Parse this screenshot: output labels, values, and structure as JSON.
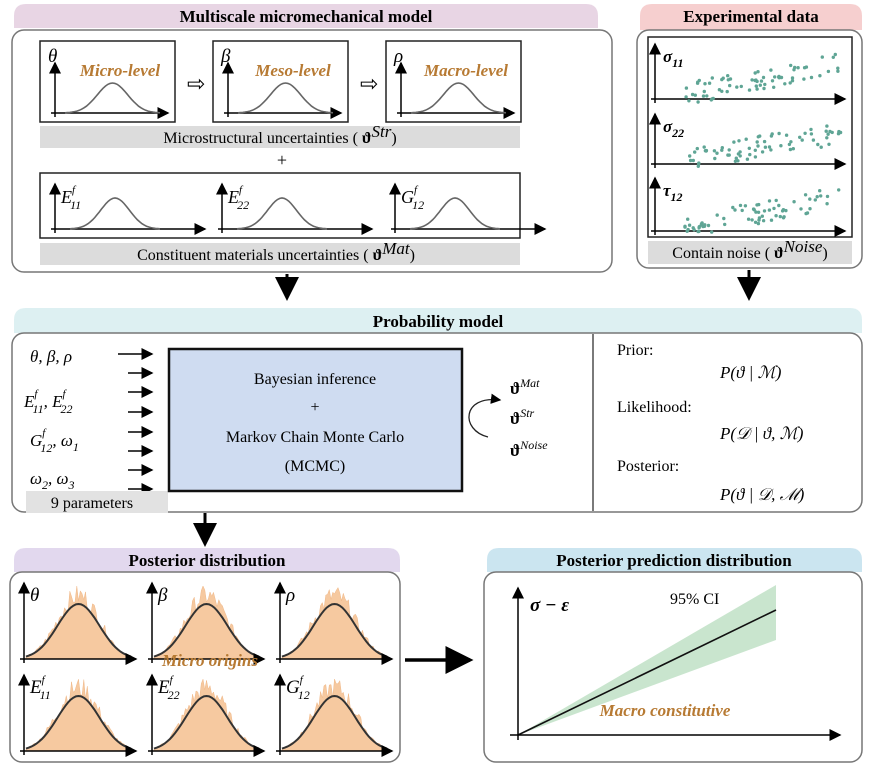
{
  "colors": {
    "accent_orange": "#b77a33",
    "multiscale_tab": "#e8d5e4",
    "experimental_tab": "#f6cfcf",
    "probability_tab": "#ddf0f2",
    "posterior_tab": "#e2d8ee",
    "prediction_tab": "#cbe5f0",
    "bayes_box": "#cfdcf1",
    "scatter": "#5fa595",
    "ci_band": "#bfe0c6",
    "posterior_fill": "#f6c9a0"
  },
  "multiscale": {
    "title": "Multiscale micromechanical model",
    "levels": [
      {
        "symbol": "θ",
        "label": "Micro-level"
      },
      {
        "symbol": "β",
        "label": "Meso-level"
      },
      {
        "symbol": "ρ",
        "label": "Macro-level"
      }
    ],
    "str_label": "Microstructural uncertainties (",
    "str_sym": "ϑ",
    "str_sup": "Str",
    "close": ")",
    "plus": "+",
    "materials": [
      {
        "base": "E",
        "sub": "11",
        "sup": "f"
      },
      {
        "base": "E",
        "sub": "22",
        "sup": "f"
      },
      {
        "base": "G",
        "sub": "12",
        "sup": "f"
      }
    ],
    "mat_label": "Constituent materials uncertainties (",
    "mat_sym": "ϑ",
    "mat_sup": "Mat"
  },
  "experimental": {
    "title": "Experimental data",
    "plots": [
      {
        "base": "σ",
        "sub": "11"
      },
      {
        "base": "σ",
        "sub": "22"
      },
      {
        "base": "τ",
        "sub": "12"
      }
    ],
    "noise_label": "Contain noise (",
    "noise_sym": "ϑ",
    "noise_sup": "Noise",
    "close": ")"
  },
  "probability": {
    "title": "Probability model",
    "inputs": {
      "l1": "θ, β, ρ",
      "l2a": "E",
      "l2a_sub": "11",
      "l2a_sup": "f",
      "l2b": ", E",
      "l2b_sub": "22",
      "l2b_sup": "f",
      "l3a": "G",
      "l3a_sub": "12",
      "l3a_sup": "f",
      "l3b": ", ω",
      "l3b_sub": "1",
      "l4a": "ω",
      "l4a_sub": "2",
      "l4b": ", ω",
      "l4b_sub": "3"
    },
    "param_count": "9 parameters",
    "bayes_line1": "Bayesian inference",
    "bayes_plus": "+",
    "bayes_line2": "Markov Chain Monte Carlo",
    "bayes_line3": "(MCMC)",
    "outputs": [
      {
        "sym": "ϑ",
        "sup": "Mat"
      },
      {
        "sym": "ϑ",
        "sup": "Str"
      },
      {
        "sym": "ϑ",
        "sup": "Noise"
      }
    ],
    "prior_label": "Prior:",
    "prior_eq": "P(ϑ | ℳ)",
    "likelihood_label": "Likelihood:",
    "likelihood_eq": "P(𝒟 | ϑ, ℳ)",
    "posterior_label": "Posterior:",
    "posterior_eq": "P(ϑ | 𝒟, ℳ)"
  },
  "posterior": {
    "title": "Posterior distribution",
    "params": [
      {
        "base": "θ",
        "sub": "",
        "sup": ""
      },
      {
        "base": "β",
        "sub": "",
        "sup": ""
      },
      {
        "base": "ρ",
        "sub": "",
        "sup": ""
      },
      {
        "base": "E",
        "sub": "11",
        "sup": "f"
      },
      {
        "base": "E",
        "sub": "22",
        "sup": "f"
      },
      {
        "base": "G",
        "sub": "12",
        "sup": "f"
      }
    ],
    "annotation": "Micro origins"
  },
  "prediction": {
    "title": "Posterior prediction distribution",
    "axis_label": "σ − ε",
    "ci_label": "95% CI",
    "annotation": "Macro constitutive"
  }
}
